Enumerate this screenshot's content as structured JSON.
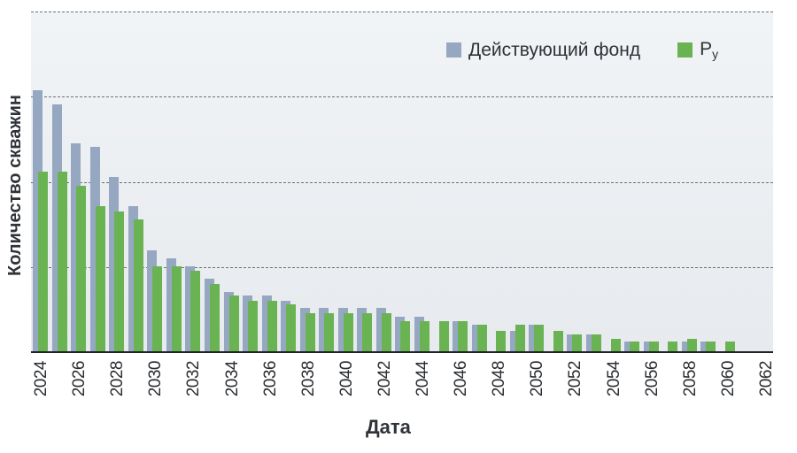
{
  "chart_data": {
    "type": "bar",
    "title": "",
    "xlabel": "Дата",
    "ylabel": "Количество скважин",
    "legend_position": "top-right inside plot",
    "grid": "horizontal dashed",
    "ylim": [
      0,
      4
    ],
    "y_tick_labels": [],
    "x_tick_labels": [
      "2024",
      "2026",
      "2028",
      "2030",
      "2032",
      "2034",
      "2036",
      "2038",
      "2040",
      "2042",
      "2044",
      "2046",
      "2048",
      "2050",
      "2052",
      "2054",
      "2056",
      "2058",
      "2060",
      "2062"
    ],
    "categories": [
      2024,
      2025,
      2026,
      2027,
      2028,
      2029,
      2030,
      2031,
      2032,
      2033,
      2034,
      2035,
      2036,
      2037,
      2038,
      2039,
      2040,
      2041,
      2042,
      2043,
      2044,
      2045,
      2046,
      2047,
      2048,
      2049,
      2050,
      2051,
      2052,
      2053,
      2054,
      2055,
      2056,
      2057,
      2058,
      2059,
      2060,
      2061,
      2062
    ],
    "series": [
      {
        "name": "Действующий фонд",
        "color": "#96a7c2",
        "values": [
          3.08,
          2.91,
          2.45,
          2.41,
          2.06,
          1.71,
          1.2,
          1.1,
          1.01,
          0.86,
          0.71,
          0.66,
          0.66,
          0.6,
          0.52,
          0.52,
          0.52,
          0.52,
          0.52,
          0.42,
          0.42,
          0,
          0.36,
          0.32,
          0,
          0.25,
          0.32,
          0,
          0.21,
          0.21,
          0,
          0.12,
          0.12,
          0,
          0.12,
          0.12,
          0,
          0,
          0
        ]
      },
      {
        "name": "Pу",
        "color": "#6ab352",
        "values": [
          2.12,
          2.12,
          1.95,
          1.71,
          1.65,
          1.56,
          1.01,
          1.01,
          0.96,
          0.8,
          0.66,
          0.6,
          0.6,
          0.56,
          0.46,
          0.46,
          0.46,
          0.46,
          0.46,
          0.36,
          0.36,
          0.36,
          0.36,
          0.32,
          0.25,
          0.32,
          0.32,
          0.25,
          0.21,
          0.21,
          0.16,
          0.12,
          0.12,
          0.12,
          0.16,
          0.12,
          0.12,
          0,
          0
        ]
      }
    ],
    "units_note": "y values in gridline-interval units (no numeric y-axis labels shown)"
  },
  "legend": {
    "item1": "Действующий фонд",
    "item2_main": "P",
    "item2_sub": "у"
  },
  "axes": {
    "xlabel": "Дата",
    "ylabel": "Количество скважин"
  }
}
